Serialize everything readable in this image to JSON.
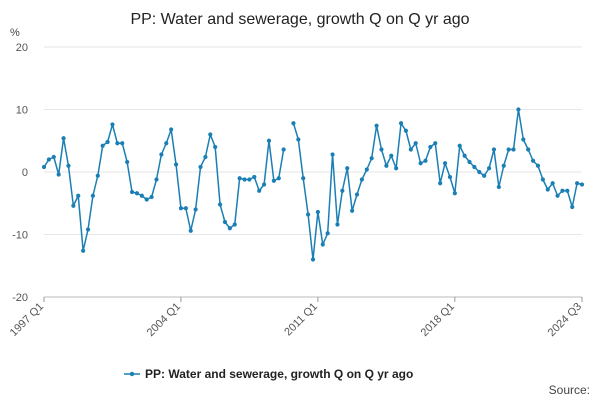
{
  "chart_data": {
    "type": "line",
    "title": "PP: Water and sewerage, growth Q on Q yr ago",
    "ylabel": "%",
    "xlabel": "",
    "ylim": [
      -20,
      20
    ],
    "yticks": [
      -20,
      -10,
      0,
      10,
      20
    ],
    "xtick_labels": [
      {
        "label": "1997 Q1",
        "index": 0
      },
      {
        "label": "2004 Q1",
        "index": 28
      },
      {
        "label": "2011 Q1",
        "index": 56
      },
      {
        "label": "2018 Q1",
        "index": 84
      },
      {
        "label": "2024 Q3",
        "index": 110
      }
    ],
    "grid": true,
    "legend_position": "bottom",
    "series": [
      {
        "name": "PP: Water and sewerage, growth Q on Q yr ago",
        "color": "#1a7fb5",
        "values": [
          0.8,
          2.0,
          2.4,
          -0.4,
          5.4,
          1.0,
          -5.4,
          -3.8,
          -12.6,
          -9.2,
          -3.8,
          -0.6,
          4.2,
          4.8,
          7.6,
          4.6,
          4.6,
          1.6,
          -3.2,
          -3.4,
          -3.8,
          -4.4,
          -4.0,
          -1.2,
          2.8,
          4.6,
          6.8,
          1.2,
          -5.8,
          -5.8,
          -9.4,
          -6.0,
          0.8,
          2.4,
          6.0,
          4.0,
          -5.2,
          -8.0,
          -9.0,
          -8.4,
          -1.0,
          -1.2,
          -1.2,
          -0.8,
          -3.0,
          -2.0,
          5.0,
          -1.4,
          -1.0,
          3.6,
          null,
          7.8,
          5.2,
          -1.0,
          -6.8,
          -14.0,
          -6.4,
          -11.6,
          -9.8,
          2.8,
          -8.4,
          -3.0,
          0.6,
          -6.2,
          -3.6,
          -1.2,
          0.4,
          2.2,
          7.4,
          3.6,
          1.0,
          2.6,
          0.6,
          7.8,
          6.6,
          3.6,
          4.6,
          1.4,
          1.8,
          4.0,
          4.6,
          -1.8,
          1.4,
          -0.8,
          -3.4,
          4.2,
          2.6,
          1.6,
          0.8,
          0.0,
          -0.6,
          0.6,
          3.6,
          -2.4,
          1.0,
          3.6,
          3.6,
          10.0,
          5.2,
          3.6,
          1.8,
          1.0,
          -1.2,
          -2.8,
          -1.8,
          -3.8,
          -3.0,
          -3.0,
          -5.6,
          -1.8,
          -2.0
        ]
      }
    ]
  },
  "footer": {
    "source_label": "Source:"
  }
}
